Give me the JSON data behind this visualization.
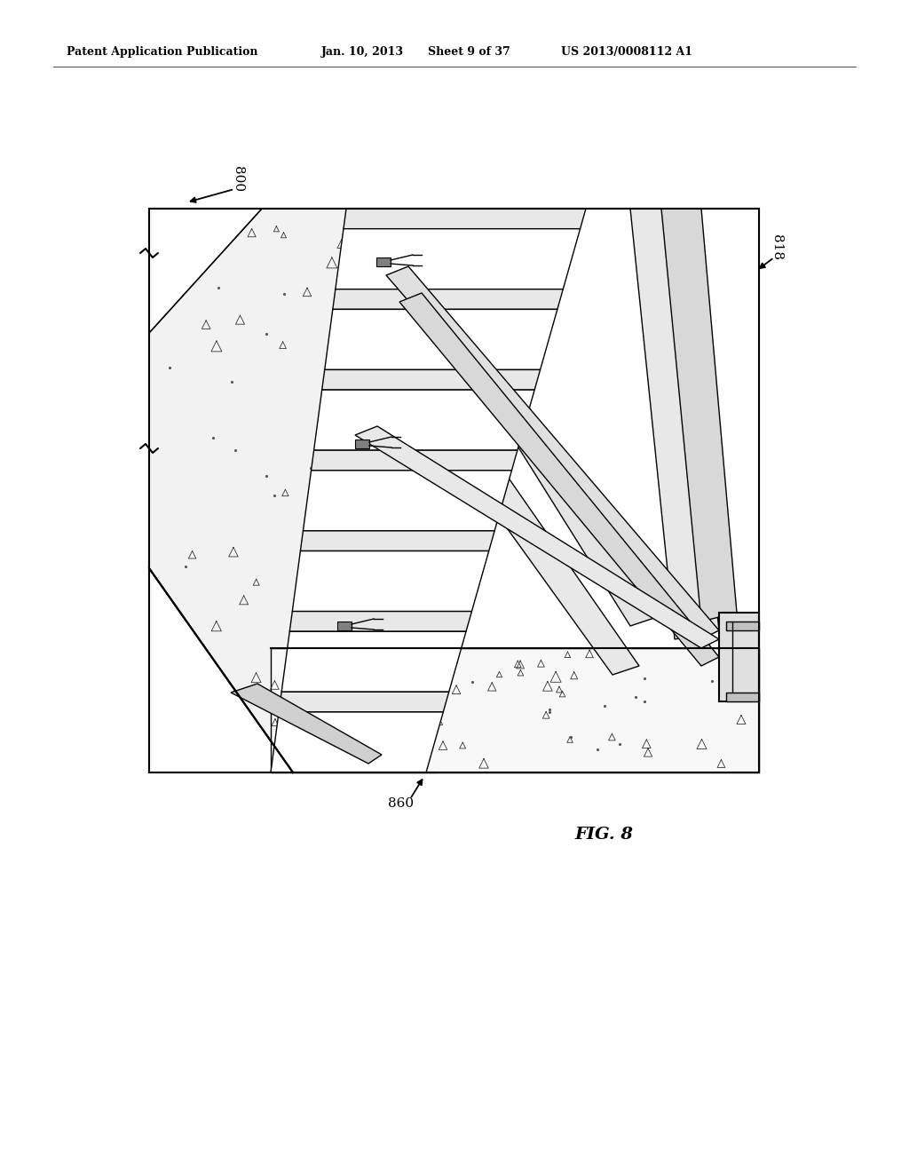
{
  "background_color": "#ffffff",
  "header_text": "Patent Application Publication",
  "header_date": "Jan. 10, 2013",
  "header_sheet": "Sheet 9 of 37",
  "header_patent": "US 2013/0008112 A1",
  "label_800": "800",
  "label_818": "818",
  "label_860": "860",
  "fig_label": "FIG. 8",
  "line_color": "#000000"
}
